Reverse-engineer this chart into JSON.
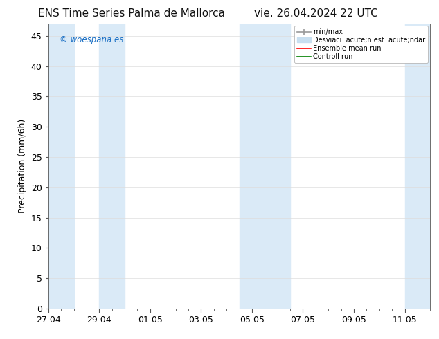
{
  "title_left": "ENS Time Series Palma de Mallorca",
  "title_right": "vie. 26.04.2024 22 UTC",
  "ylabel": "Precipitation (mm/6h)",
  "watermark": "© woespana.es",
  "background_color": "#ffffff",
  "plot_bg_color": "#ffffff",
  "ylim": [
    0,
    47
  ],
  "yticks": [
    0,
    5,
    10,
    15,
    20,
    25,
    30,
    35,
    40,
    45
  ],
  "xtick_labels": [
    "27.04",
    "29.04",
    "01.05",
    "03.05",
    "05.05",
    "07.05",
    "09.05",
    "11.05"
  ],
  "xtick_positions": [
    0,
    2,
    4,
    6,
    8,
    10,
    12,
    14
  ],
  "x_min": 0,
  "x_max": 15,
  "shade_bands": [
    [
      0.0,
      1.0
    ],
    [
      2.0,
      3.0
    ],
    [
      7.5,
      9.5
    ],
    [
      14.0,
      15.0
    ]
  ],
  "shade_color": "#daeaf7",
  "shade_alpha": 1.0,
  "legend_entries": [
    {
      "label": "min/max",
      "color": "#aaaaaa",
      "lw": 1.2,
      "style": "solid"
    },
    {
      "label": "Desviaci  acute;n est  acute;ndar",
      "color": "#c8dff0",
      "lw": 6,
      "style": "solid"
    },
    {
      "label": "Ensemble mean run",
      "color": "#ff0000",
      "lw": 1.2,
      "style": "solid"
    },
    {
      "label": "Controll run",
      "color": "#008000",
      "lw": 1.2,
      "style": "solid"
    }
  ],
  "title_fontsize": 11,
  "axis_fontsize": 9,
  "watermark_color": "#1a6fc4",
  "grid_color": "#dddddd",
  "legend_fontsize": 7,
  "legend_loc": "upper right"
}
